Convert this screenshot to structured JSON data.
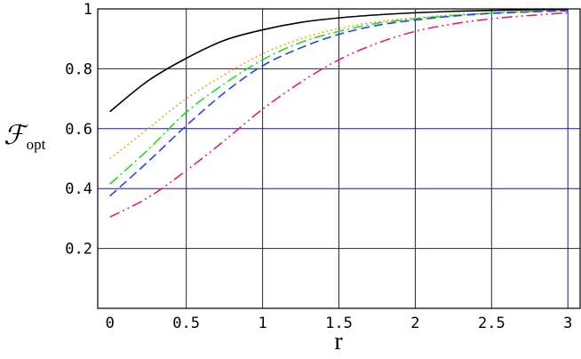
{
  "chart_data": {
    "type": "line",
    "title": "",
    "xlabel": "r",
    "ylabel_main": "ℱ",
    "ylabel_sub": "opt",
    "xlim": [
      -0.08,
      3.08
    ],
    "ylim": [
      0.0,
      1.0
    ],
    "x_ticks": [
      0,
      0.5,
      1,
      1.5,
      2,
      2.5,
      3
    ],
    "x_tick_labels": [
      "0",
      "0.5",
      "1",
      "1.5",
      "2",
      "2.5",
      "3"
    ],
    "y_ticks": [
      0.2,
      0.4,
      0.6,
      0.8,
      1.0
    ],
    "y_tick_labels": [
      "0.2",
      "0.4",
      "0.6",
      "0.8",
      "1"
    ],
    "grid": true,
    "legend": "none",
    "x": [
      0,
      0.25,
      0.5,
      0.75,
      1.0,
      1.25,
      1.5,
      1.75,
      2.0,
      2.25,
      2.5,
      2.75,
      3.0
    ],
    "series": [
      {
        "color": "#000000",
        "dash": "",
        "values": [
          0.657,
          0.76,
          0.835,
          0.895,
          0.93,
          0.955,
          0.97,
          0.98,
          0.987,
          0.992,
          0.995,
          0.997,
          0.998
        ]
      },
      {
        "color": "#f5a623",
        "dash": "2 3",
        "values": [
          0.5,
          0.6,
          0.7,
          0.78,
          0.85,
          0.9,
          0.935,
          0.957,
          0.97,
          0.98,
          0.987,
          0.992,
          0.995
        ]
      },
      {
        "color": "#22dd22",
        "dash": "12 4 2 4",
        "values": [
          0.415,
          0.53,
          0.655,
          0.75,
          0.83,
          0.888,
          0.925,
          0.952,
          0.967,
          0.978,
          0.986,
          0.991,
          0.994
        ]
      },
      {
        "color": "#2244ee",
        "dash": "10 5",
        "values": [
          0.375,
          0.49,
          0.61,
          0.72,
          0.81,
          0.87,
          0.915,
          0.945,
          0.963,
          0.976,
          0.985,
          0.99,
          0.994
        ]
      },
      {
        "color": "#e0226a",
        "dash": "12 4 2 4 2 4",
        "values": [
          0.305,
          0.37,
          0.46,
          0.56,
          0.665,
          0.755,
          0.83,
          0.885,
          0.925,
          0.95,
          0.967,
          0.978,
          0.987
        ]
      }
    ]
  }
}
